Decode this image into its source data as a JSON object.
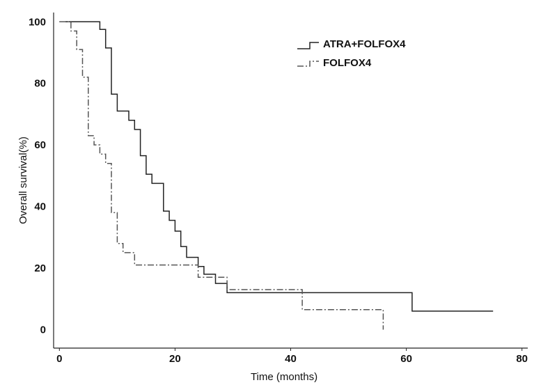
{
  "chart_data": {
    "type": "line",
    "subtype": "kaplan-meier-step",
    "xlabel": "Time (months)",
    "ylabel": "Overall survival(%)",
    "xlim": [
      -1,
      81
    ],
    "ylim": [
      -6,
      103
    ],
    "xticks": [
      0,
      20,
      40,
      60,
      80
    ],
    "yticks": [
      0,
      20,
      40,
      60,
      80,
      100
    ],
    "grid": false,
    "legend_position": "top-right",
    "series": [
      {
        "name": "ATRA+FOLFOX4",
        "color": "#222222",
        "style": "solid",
        "points": [
          [
            0,
            100
          ],
          [
            7,
            100
          ],
          [
            7,
            97.5
          ],
          [
            8,
            97.5
          ],
          [
            8,
            91.5
          ],
          [
            9,
            91.5
          ],
          [
            9,
            76.5
          ],
          [
            10,
            76.5
          ],
          [
            10,
            71
          ],
          [
            12,
            71
          ],
          [
            12,
            68
          ],
          [
            13,
            68
          ],
          [
            13,
            65
          ],
          [
            14,
            65
          ],
          [
            14,
            56.5
          ],
          [
            15,
            56.5
          ],
          [
            15,
            50.5
          ],
          [
            16,
            50.5
          ],
          [
            16,
            47.5
          ],
          [
            18,
            47.5
          ],
          [
            18,
            38.5
          ],
          [
            19,
            38.5
          ],
          [
            19,
            35.5
          ],
          [
            20,
            35.5
          ],
          [
            20,
            32
          ],
          [
            21,
            32
          ],
          [
            21,
            27
          ],
          [
            22,
            27
          ],
          [
            22,
            23.5
          ],
          [
            24,
            23.5
          ],
          [
            24,
            20.5
          ],
          [
            25,
            20.5
          ],
          [
            25,
            18
          ],
          [
            27,
            18
          ],
          [
            27,
            15
          ],
          [
            29,
            15
          ],
          [
            29,
            12
          ],
          [
            61,
            12
          ],
          [
            61,
            6
          ],
          [
            75,
            6
          ]
        ]
      },
      {
        "name": "FOLFOX4",
        "color": "#555555",
        "style": "dashdot",
        "points": [
          [
            0,
            100
          ],
          [
            2,
            100
          ],
          [
            2,
            97
          ],
          [
            3,
            97
          ],
          [
            3,
            91
          ],
          [
            4,
            91
          ],
          [
            4,
            82
          ],
          [
            5,
            82
          ],
          [
            5,
            63
          ],
          [
            6,
            63
          ],
          [
            6,
            60
          ],
          [
            7,
            60
          ],
          [
            7,
            57
          ],
          [
            8,
            57
          ],
          [
            8,
            54
          ],
          [
            9,
            54
          ],
          [
            9,
            38
          ],
          [
            10,
            38
          ],
          [
            10,
            28
          ],
          [
            11,
            28
          ],
          [
            11,
            25
          ],
          [
            13,
            25
          ],
          [
            13,
            21
          ],
          [
            24,
            21
          ],
          [
            24,
            17
          ],
          [
            29,
            17
          ],
          [
            29,
            13
          ],
          [
            42,
            13
          ],
          [
            42,
            6.5
          ],
          [
            56,
            6.5
          ],
          [
            56,
            0
          ]
        ]
      }
    ]
  }
}
